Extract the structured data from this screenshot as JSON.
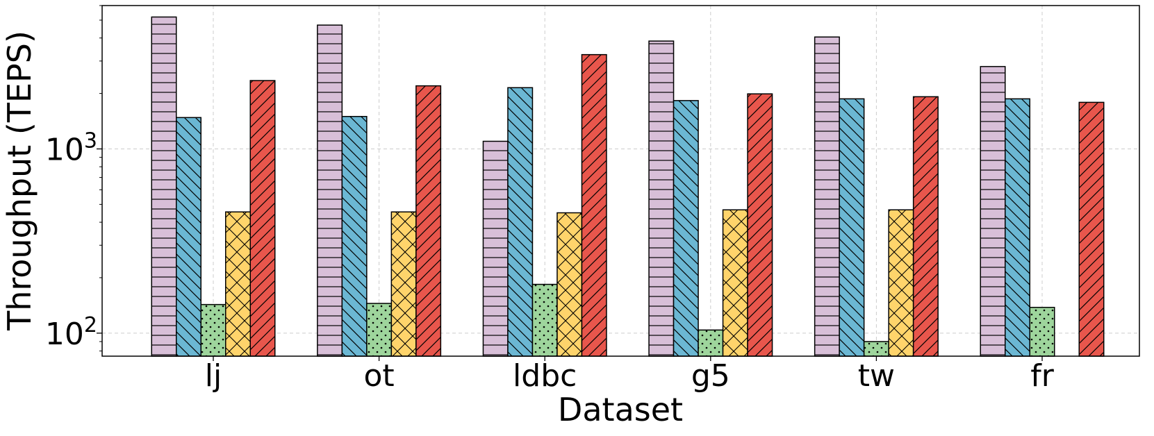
{
  "chart_data": {
    "type": "bar",
    "title": "",
    "xlabel": "Dataset",
    "ylabel": "Throughput (TEPS)",
    "yscale": "log",
    "ylim": [
      75,
      6000
    ],
    "grid": true,
    "categories": [
      "lj",
      "ot",
      "ldbc",
      "g5",
      "tw",
      "fr"
    ],
    "y_ticks": [
      {
        "value": 100,
        "base": "10",
        "exp": "2"
      },
      {
        "value": 1000,
        "base": "10",
        "exp": "3"
      }
    ],
    "series": [
      {
        "color": "#d8bfd8",
        "hatch": "horizontal",
        "values": [
          5200,
          4700,
          1100,
          3850,
          4050,
          2800
        ]
      },
      {
        "color": "#6bb7d3",
        "hatch": "backslash",
        "values": [
          1480,
          1500,
          2150,
          1830,
          1870,
          1870
        ]
      },
      {
        "color": "#9ed59c",
        "hatch": "dots",
        "values": [
          143,
          145,
          184,
          104,
          90,
          138
        ]
      },
      {
        "color": "#ffd46b",
        "hatch": "cross",
        "values": [
          455,
          455,
          450,
          467,
          467,
          null
        ]
      },
      {
        "color": "#e8564c",
        "hatch": "slash",
        "values": [
          2350,
          2200,
          3250,
          1990,
          1920,
          1790
        ]
      }
    ]
  }
}
